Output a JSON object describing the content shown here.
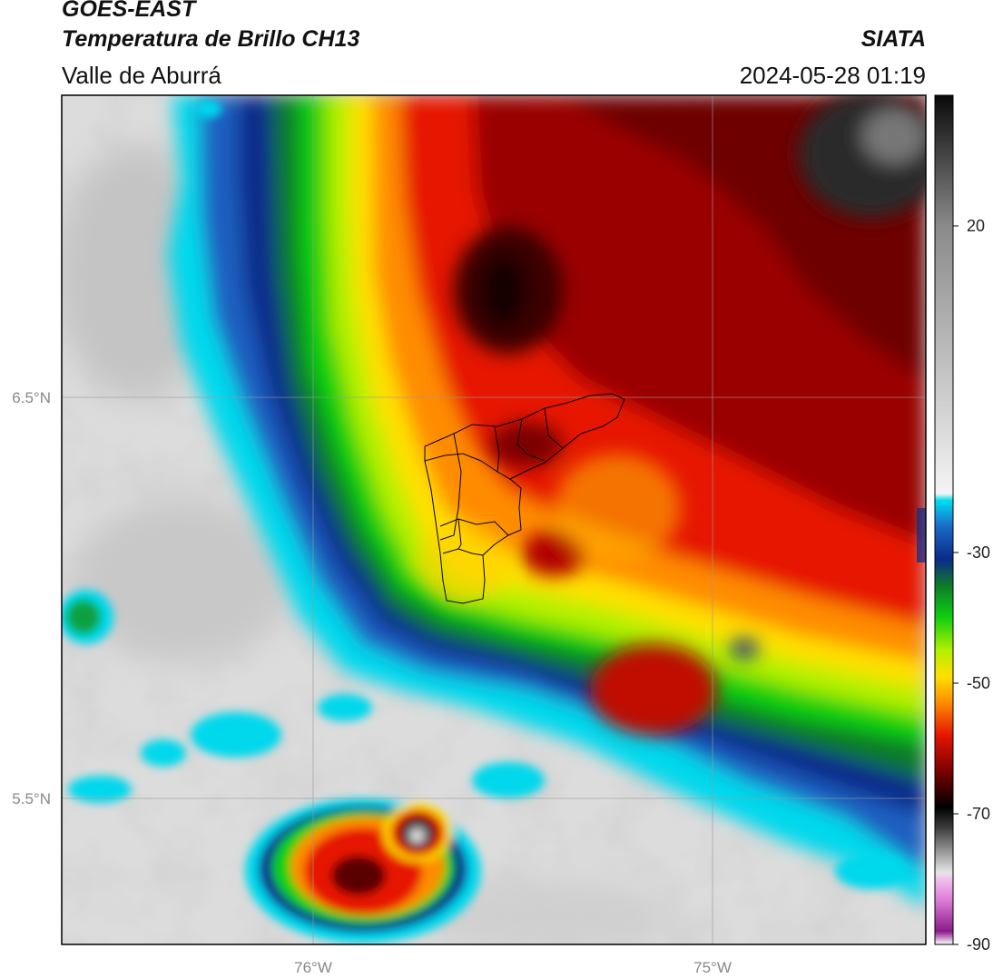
{
  "header": {
    "satellite": "GOES-EAST",
    "product": "Temperatura de Brillo CH13",
    "region": "Valle de Aburrá",
    "organization": "SIATA",
    "datetime": "2024-05-28 01:19"
  },
  "map": {
    "lat_labels": [
      "6.5°N",
      "5.5°N"
    ],
    "lon_labels": [
      "76°W",
      "75°W"
    ]
  },
  "colorbar": {
    "ticks": [
      "20",
      "-30",
      "-50",
      "-70",
      "-90"
    ],
    "range": [
      -90,
      40
    ],
    "units_hint": "°C",
    "stops": [
      {
        "v": -90,
        "c": "#ffffff"
      },
      {
        "v": -88,
        "c": "#8b1a8b"
      },
      {
        "v": -83,
        "c": "#e080d8"
      },
      {
        "v": -80,
        "c": "#f0c0ec"
      },
      {
        "v": -79,
        "c": "#e6e6e6"
      },
      {
        "v": -72,
        "c": "#3a3a3a"
      },
      {
        "v": -69,
        "c": "#000000"
      },
      {
        "v": -64,
        "c": "#6e0000"
      },
      {
        "v": -58,
        "c": "#e61400"
      },
      {
        "v": -53,
        "c": "#ff8c00"
      },
      {
        "v": -49,
        "c": "#ffe000"
      },
      {
        "v": -45,
        "c": "#b4f000"
      },
      {
        "v": -40,
        "c": "#10d010"
      },
      {
        "v": -35,
        "c": "#0c7a28"
      },
      {
        "v": -31,
        "c": "#0a2a8a"
      },
      {
        "v": -26,
        "c": "#1a6ac8"
      },
      {
        "v": -22,
        "c": "#00e0f0"
      },
      {
        "v": -21,
        "c": "#f4f4f4"
      },
      {
        "v": 0,
        "c": "#bdbdbd"
      },
      {
        "v": 20,
        "c": "#8a8a8a"
      },
      {
        "v": 40,
        "c": "#0a0a0a"
      }
    ]
  }
}
